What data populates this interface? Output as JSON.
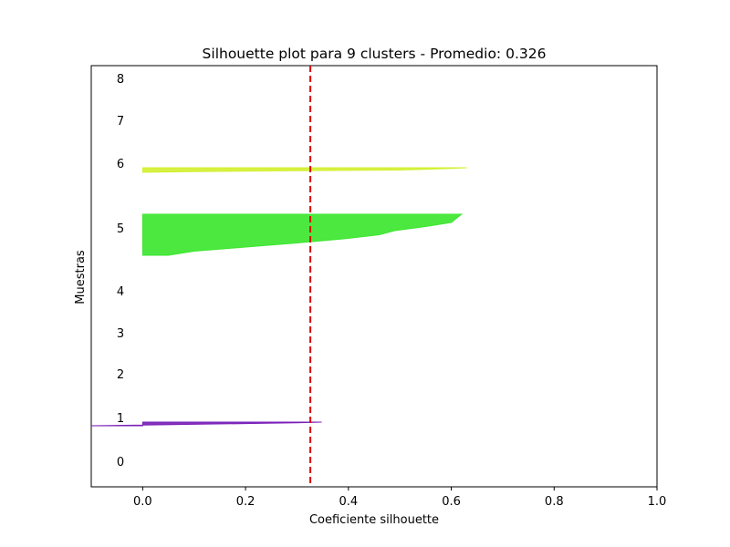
{
  "chart_data": {
    "type": "area",
    "title": "Silhouette plot para 9 clusters - Promedio: 0.326",
    "xlabel": "Coeficiente silhouette",
    "ylabel": "Muestras",
    "xlim": [
      -0.1,
      1.0
    ],
    "x_ticks": [
      "0.0",
      "0.2",
      "0.4",
      "0.6",
      "0.8",
      "1.0"
    ],
    "x_tick_values": [
      0.0,
      0.2,
      0.4,
      0.6,
      0.8,
      1.0
    ],
    "cluster_labels": [
      "0",
      "1",
      "2",
      "3",
      "4",
      "5",
      "6",
      "7",
      "8"
    ],
    "average_silhouette": 0.326,
    "average_line_color": "#dd0000",
    "grid": false,
    "legend": "none",
    "series": [
      {
        "cluster": "1",
        "color": "#7a1fb8",
        "silhouette_values": [
          0.348,
          0.3,
          0.2,
          0.1,
          0.0,
          -0.1
        ]
      },
      {
        "cluster": "5",
        "color": "#3de630",
        "silhouette_values": [
          0.62,
          0.61,
          0.6,
          0.55,
          0.49,
          0.46,
          0.39,
          0.3,
          0.2,
          0.1,
          0.05
        ]
      },
      {
        "cluster": "6",
        "color": "#d3f032",
        "silhouette_values": [
          0.63,
          0.6,
          0.55,
          0.5,
          0.3,
          0.1,
          0.0
        ]
      }
    ]
  }
}
